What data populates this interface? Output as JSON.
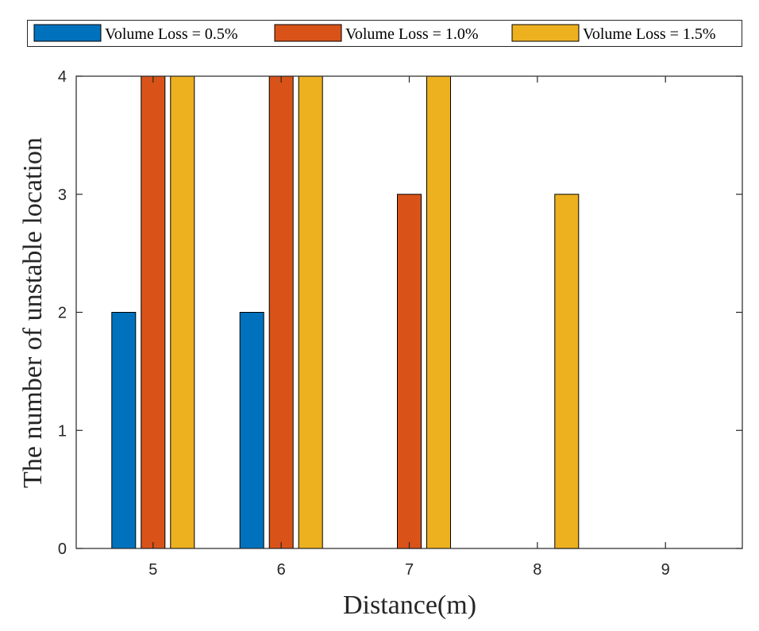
{
  "chart_data": {
    "type": "bar",
    "xlabel": "Distance(m)",
    "ylabel": "The number of unstable location",
    "categories": [
      "5",
      "6",
      "7",
      "8",
      "9"
    ],
    "ylim": [
      0,
      4
    ],
    "yticks": [
      "0",
      "1",
      "2",
      "3",
      "4"
    ],
    "grid": false,
    "legend_position": "top",
    "series": [
      {
        "name": "Volume Loss = 0.5%",
        "color": "#0072BD",
        "values": [
          2,
          2,
          0,
          0,
          0
        ]
      },
      {
        "name": "Volume Loss = 1.0%",
        "color": "#D95319",
        "values": [
          4,
          4,
          3,
          0,
          0
        ]
      },
      {
        "name": "Volume Loss = 1.5%",
        "color": "#EDB120",
        "values": [
          4,
          4,
          4,
          3,
          0
        ]
      }
    ]
  }
}
